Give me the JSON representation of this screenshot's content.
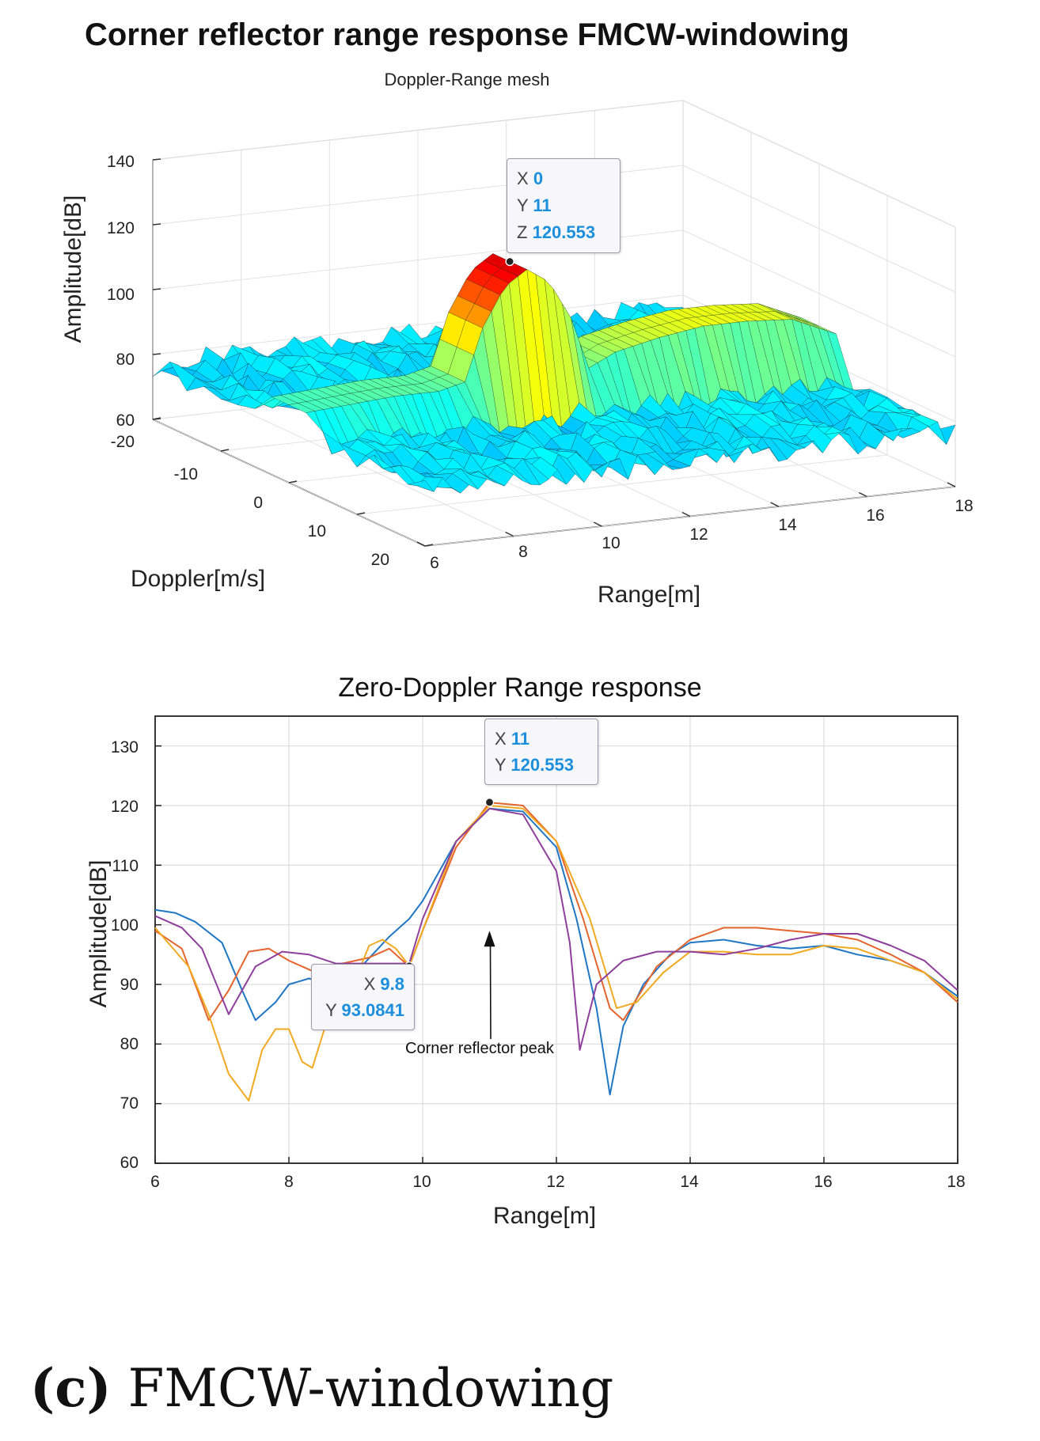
{
  "caption": {
    "label": "(c)",
    "text": "FMCW-windowing"
  },
  "chart_data": [
    {
      "type": "surface",
      "title": "Corner reflector range response FMCW-windowing",
      "subtitle": "Doppler-Range mesh",
      "xlabel": "Doppler[m/s]",
      "ylabel": "Range[m]",
      "zlabel": "Amplitude[dB]",
      "doppler_ticks": [
        "-20",
        "-10",
        "0",
        "10",
        "20"
      ],
      "range_ticks": [
        "6",
        "8",
        "10",
        "12",
        "14",
        "16",
        "18"
      ],
      "z_ticks": [
        "60",
        "80",
        "100",
        "120",
        "140"
      ],
      "xlim": [
        -20,
        20
      ],
      "ylim": [
        6,
        18
      ],
      "zlim": [
        60,
        140
      ],
      "colormap": "jet",
      "grid": true,
      "datatip": {
        "x_key": "X",
        "x": "0",
        "y_key": "Y",
        "y": "11",
        "z_key": "Z",
        "z": "120.553"
      },
      "ridge": {
        "doppler": 0,
        "range": [
          6,
          7,
          8,
          9,
          9.6,
          10,
          10.5,
          11,
          11.5,
          12,
          12.4,
          13,
          14,
          15,
          16,
          17,
          18
        ],
        "amplitude": [
          84,
          85,
          86,
          86,
          88,
          104,
          116,
          120.553,
          116,
          104,
          88,
          92,
          95,
          97,
          97,
          96,
          90
        ]
      },
      "noise_floor_db": [
        60,
        75
      ]
    },
    {
      "type": "line",
      "title": "Zero-Doppler Range response",
      "xlabel": "Range[m]",
      "ylabel": "Amplitude[dB]",
      "xlim": [
        6,
        18
      ],
      "ylim": [
        60,
        135
      ],
      "x_ticks": [
        "6",
        "8",
        "10",
        "12",
        "14",
        "16",
        "18"
      ],
      "y_ticks": [
        "60",
        "70",
        "80",
        "90",
        "100",
        "110",
        "120",
        "130"
      ],
      "grid": true,
      "series": [
        {
          "color": "#1f77c4",
          "points": [
            [
              6,
              102.5
            ],
            [
              6.3,
              102
            ],
            [
              6.6,
              100.5
            ],
            [
              7,
              97
            ],
            [
              7.3,
              89
            ],
            [
              7.5,
              84
            ],
            [
              7.8,
              87
            ],
            [
              8,
              90
            ],
            [
              8.3,
              91
            ],
            [
              8.6,
              90
            ],
            [
              9,
              92
            ],
            [
              9.5,
              98
            ],
            [
              9.8,
              101
            ],
            [
              10,
              104
            ],
            [
              10.5,
              114
            ],
            [
              11,
              119.5
            ],
            [
              11.5,
              119
            ],
            [
              12,
              113
            ],
            [
              12.3,
              101
            ],
            [
              12.6,
              86
            ],
            [
              12.8,
              71.5
            ],
            [
              13,
              83
            ],
            [
              13.3,
              90
            ],
            [
              13.7,
              95
            ],
            [
              14,
              97
            ],
            [
              14.5,
              97.5
            ],
            [
              15,
              96.5
            ],
            [
              15.5,
              96
            ],
            [
              16,
              96.5
            ],
            [
              16.5,
              95
            ],
            [
              17,
              94
            ],
            [
              17.5,
              92
            ],
            [
              18,
              88
            ]
          ]
        },
        {
          "color": "#e5642c",
          "points": [
            [
              6,
              99
            ],
            [
              6.4,
              96
            ],
            [
              6.8,
              84
            ],
            [
              7.1,
              89
            ],
            [
              7.4,
              95.5
            ],
            [
              7.7,
              96
            ],
            [
              8,
              94
            ],
            [
              8.4,
              92
            ],
            [
              8.8,
              93.5
            ],
            [
              9.2,
              94.5
            ],
            [
              9.5,
              96
            ],
            [
              9.8,
              93
            ],
            [
              10,
              99
            ],
            [
              10.5,
              113
            ],
            [
              11,
              120.5
            ],
            [
              11.5,
              120
            ],
            [
              12,
              114
            ],
            [
              12.4,
              101
            ],
            [
              12.8,
              86
            ],
            [
              13,
              84
            ],
            [
              13.5,
              93
            ],
            [
              14,
              97.5
            ],
            [
              14.5,
              99.5
            ],
            [
              15,
              99.5
            ],
            [
              15.5,
              99
            ],
            [
              16,
              98.5
            ],
            [
              16.5,
              97.5
            ],
            [
              17,
              95
            ],
            [
              17.5,
              92
            ],
            [
              18,
              87
            ]
          ]
        },
        {
          "color": "#f2a922",
          "points": [
            [
              6,
              99.5
            ],
            [
              6.5,
              93
            ],
            [
              6.8,
              85
            ],
            [
              7.1,
              75
            ],
            [
              7.4,
              70.5
            ],
            [
              7.6,
              79
            ],
            [
              7.8,
              82.5
            ],
            [
              8,
              82.5
            ],
            [
              8.2,
              77
            ],
            [
              8.35,
              76
            ],
            [
              8.6,
              85
            ],
            [
              9,
              91
            ],
            [
              9.2,
              96.5
            ],
            [
              9.4,
              97.5
            ],
            [
              9.6,
              96
            ],
            [
              9.8,
              93.1
            ],
            [
              10.1,
              102
            ],
            [
              10.5,
              114
            ],
            [
              11,
              120
            ],
            [
              11.5,
              119.5
            ],
            [
              12,
              114
            ],
            [
              12.5,
              101
            ],
            [
              12.9,
              86
            ],
            [
              13.2,
              87
            ],
            [
              13.6,
              92
            ],
            [
              14,
              95.5
            ],
            [
              14.5,
              95.5
            ],
            [
              15,
              95
            ],
            [
              15.5,
              95
            ],
            [
              16,
              96.5
            ],
            [
              16.5,
              96
            ],
            [
              17,
              94
            ],
            [
              17.5,
              92
            ],
            [
              18,
              87.5
            ]
          ]
        },
        {
          "color": "#8e3f9c",
          "points": [
            [
              6,
              101.5
            ],
            [
              6.4,
              99.5
            ],
            [
              6.7,
              96
            ],
            [
              7.1,
              85
            ],
            [
              7.5,
              93
            ],
            [
              7.9,
              95.5
            ],
            [
              8.3,
              95
            ],
            [
              8.7,
              93.5
            ],
            [
              9.1,
              93.5
            ],
            [
              9.5,
              93.5
            ],
            [
              9.8,
              93.5
            ],
            [
              10,
              101
            ],
            [
              10.5,
              114
            ],
            [
              11,
              119.5
            ],
            [
              11.5,
              118.5
            ],
            [
              12,
              109
            ],
            [
              12.2,
              97
            ],
            [
              12.35,
              79
            ],
            [
              12.6,
              90
            ],
            [
              13,
              94
            ],
            [
              13.5,
              95.5
            ],
            [
              14,
              95.5
            ],
            [
              14.5,
              95
            ],
            [
              15,
              96
            ],
            [
              15.5,
              97.5
            ],
            [
              16,
              98.5
            ],
            [
              16.5,
              98.5
            ],
            [
              17,
              96.5
            ],
            [
              17.5,
              94
            ],
            [
              18,
              89
            ]
          ]
        }
      ],
      "datatips": [
        {
          "x_key": "X",
          "x": "11",
          "y_key": "Y",
          "y": "120.553",
          "at": [
            11,
            120.553
          ]
        },
        {
          "x_key": "X",
          "x": "9.8",
          "y_key": "Y",
          "y": "93.0841",
          "at": [
            9.8,
            93.0841
          ]
        }
      ],
      "annotation": {
        "text": "Corner reflector peak",
        "points_to": [
          11,
          99
        ]
      }
    }
  ]
}
